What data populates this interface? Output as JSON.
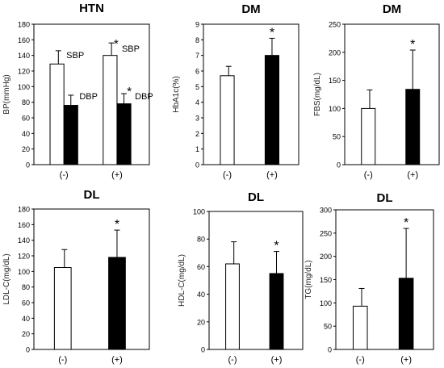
{
  "chart_data": [
    {
      "type": "bar",
      "title": "HTN",
      "ylabel": "BP(mmHg)",
      "categories": [
        "(-)",
        "(+)"
      ],
      "ylim": [
        0,
        180
      ],
      "yticks": [
        0,
        20,
        40,
        60,
        80,
        100,
        120,
        140,
        160,
        180
      ],
      "series": [
        {
          "name": "SBP",
          "values": [
            129,
            140
          ],
          "errors": [
            17,
            16
          ],
          "fill": "white"
        },
        {
          "name": "DBP",
          "values": [
            76,
            78
          ],
          "errors": [
            13,
            13
          ],
          "fill": "black"
        }
      ],
      "bar_labels": [
        {
          "category": 0,
          "series": 0,
          "text": "SBP"
        },
        {
          "category": 0,
          "series": 1,
          "text": "DBP"
        },
        {
          "category": 1,
          "series": 0,
          "text": "*SBP"
        },
        {
          "category": 1,
          "series": 1,
          "text": "*DBP"
        }
      ],
      "grid": false
    },
    {
      "type": "bar",
      "title": "DM",
      "ylabel": "HbA1c(%)",
      "categories": [
        "(-)",
        "(+)"
      ],
      "ylim": [
        0,
        9
      ],
      "yticks": [
        0,
        1,
        2,
        3,
        4,
        5,
        6,
        7,
        8,
        9
      ],
      "values": [
        5.7,
        7.0
      ],
      "errors": [
        0.6,
        1.1
      ],
      "fills": [
        "white",
        "black"
      ],
      "annotations": [
        {
          "category": 1,
          "text": "*"
        }
      ],
      "grid": false
    },
    {
      "type": "bar",
      "title": "DM",
      "ylabel": "FBS(mg/dL)",
      "categories": [
        "(-)",
        "(+)"
      ],
      "ylim": [
        0,
        250
      ],
      "yticks": [
        0,
        50,
        100,
        150,
        200,
        250
      ],
      "values": [
        100,
        134
      ],
      "errors": [
        33,
        70
      ],
      "fills": [
        "white",
        "black"
      ],
      "annotations": [
        {
          "category": 1,
          "text": "*"
        }
      ],
      "grid": false
    },
    {
      "type": "bar",
      "title": "DL",
      "ylabel": "LDL-C(mg/dL)",
      "categories": [
        "(-)",
        "(+)"
      ],
      "ylim": [
        0,
        180
      ],
      "yticks": [
        0,
        20,
        40,
        60,
        80,
        100,
        120,
        140,
        160,
        180
      ],
      "values": [
        105,
        118
      ],
      "errors": [
        23,
        35
      ],
      "fills": [
        "white",
        "black"
      ],
      "annotations": [
        {
          "category": 1,
          "text": "*"
        }
      ],
      "grid": false
    },
    {
      "type": "bar",
      "title": "DL",
      "ylabel": "HDL-C(mg/dL)",
      "categories": [
        "(-)",
        "(+)"
      ],
      "ylim": [
        0,
        100
      ],
      "yticks": [
        0,
        20,
        40,
        60,
        80,
        100
      ],
      "values": [
        62,
        55
      ],
      "errors": [
        16,
        16
      ],
      "fills": [
        "white",
        "black"
      ],
      "annotations": [
        {
          "category": 1,
          "text": "*"
        }
      ],
      "grid": false
    },
    {
      "type": "bar",
      "title": "DL",
      "ylabel": "TG(mg/dL)",
      "categories": [
        "(-)",
        "(+)"
      ],
      "ylim": [
        0,
        300
      ],
      "yticks": [
        0,
        50,
        100,
        150,
        200,
        250,
        300
      ],
      "values": [
        93,
        153
      ],
      "errors": [
        38,
        107
      ],
      "fills": [
        "white",
        "black"
      ],
      "annotations": [
        {
          "category": 1,
          "text": "*"
        }
      ],
      "grid": false
    }
  ]
}
